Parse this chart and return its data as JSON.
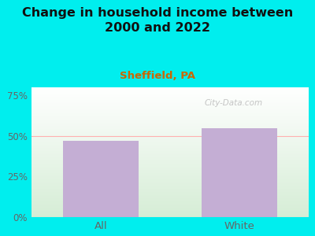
{
  "title": "Change in household income between\n2000 and 2022",
  "subtitle": "Sheffield, PA",
  "categories": [
    "All",
    "White"
  ],
  "values": [
    47.0,
    55.0
  ],
  "bar_color": "#c4aed4",
  "background_color": "#00eeee",
  "plot_bg_top": "#ffffff",
  "plot_bg_bottom": "#d6edd6",
  "yticks": [
    0,
    25,
    50,
    75
  ],
  "ytick_labels": [
    "0%",
    "25%",
    "50%",
    "75%"
  ],
  "ylim": [
    0,
    80
  ],
  "title_fontsize": 11.5,
  "subtitle_fontsize": 9.5,
  "subtitle_color": "#cc6600",
  "tick_color": "#666666",
  "watermark": "City-Data.com",
  "grid_color": "#ffb0b0",
  "grid_linewidth": 0.8
}
